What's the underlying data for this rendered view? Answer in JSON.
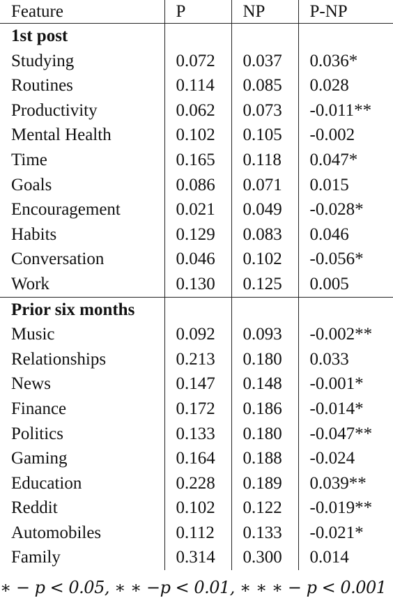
{
  "table": {
    "headers": [
      "Feature",
      "P",
      "NP",
      "P-NP"
    ],
    "sections": [
      {
        "title": "1st post",
        "rows": [
          [
            "Studying",
            "0.072",
            "0.037",
            "0.036*"
          ],
          [
            "Routines",
            "0.114",
            "0.085",
            "0.028"
          ],
          [
            "Productivity",
            "0.062",
            "0.073",
            "-0.011**"
          ],
          [
            "Mental Health",
            "0.102",
            "0.105",
            "-0.002"
          ],
          [
            "Time",
            "0.165",
            "0.118",
            "0.047*"
          ],
          [
            "Goals",
            "0.086",
            "0.071",
            "0.015"
          ],
          [
            "Encouragement",
            "0.021",
            "0.049",
            "-0.028*"
          ],
          [
            "Habits",
            "0.129",
            "0.083",
            "0.046"
          ],
          [
            "Conversation",
            "0.046",
            "0.102",
            "-0.056*"
          ],
          [
            "Work",
            "0.130",
            "0.125",
            "0.005"
          ]
        ]
      },
      {
        "title": "Prior six months",
        "rows": [
          [
            "Music",
            "0.092",
            "0.093",
            "-0.002**"
          ],
          [
            "Relationships",
            "0.213",
            "0.180",
            "0.033"
          ],
          [
            "News",
            "0.147",
            "0.148",
            "-0.001*"
          ],
          [
            "Finance",
            "0.172",
            "0.186",
            "-0.014*"
          ],
          [
            "Politics",
            "0.133",
            "0.180",
            "-0.047**"
          ],
          [
            "Gaming",
            "0.164",
            "0.188",
            "-0.024"
          ],
          [
            "Education",
            "0.228",
            "0.189",
            "0.039**"
          ],
          [
            "Reddit",
            "0.102",
            "0.122",
            "-0.019**"
          ],
          [
            "Automobiles",
            "0.112",
            "0.133",
            "-0.021*"
          ],
          [
            "Family",
            "0.314",
            "0.300",
            "0.014"
          ]
        ]
      }
    ]
  },
  "footnote": "∗ − p < 0.05, ∗ ∗ −p < 0.01, ∗ ∗ ∗ − p < 0.001"
}
